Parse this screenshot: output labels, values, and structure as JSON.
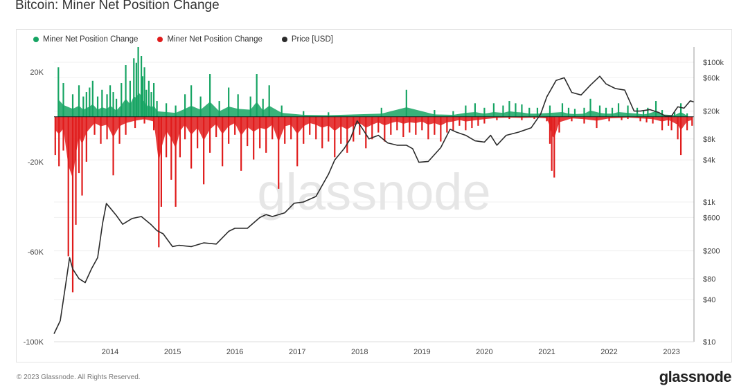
{
  "header": {
    "title": "Bitcoin: Miner Net Position Change"
  },
  "legend": [
    {
      "label": "Miner Net Position Change",
      "color": "#16a463"
    },
    {
      "label": "Miner Net Position Change",
      "color": "#e01b1b"
    },
    {
      "label": "Price [USD]",
      "color": "#2b2b2b"
    }
  ],
  "watermark": "glassnode",
  "footer": {
    "copyright": "© 2023 Glassnode. All Rights Reserved.",
    "brand": "glassnode"
  },
  "chart_data": {
    "type": "area",
    "x_ticks": [
      "2014",
      "2015",
      "2016",
      "2017",
      "2018",
      "2019",
      "2020",
      "2021",
      "2022",
      "2023"
    ],
    "x_range": [
      2013.1,
      2023.36
    ],
    "y_left_ticks": [
      {
        "value": 20000,
        "label": "20K"
      },
      {
        "value": -20000,
        "label": "-20K"
      },
      {
        "value": -60000,
        "label": "-60K"
      },
      {
        "value": -100000,
        "label": "-100K"
      }
    ],
    "y_left_range": [
      -100000,
      31000
    ],
    "y_right_ticks": [
      {
        "value": 100000,
        "label": "$100k"
      },
      {
        "value": 60000,
        "label": "$60k"
      },
      {
        "value": 20000,
        "label": "$20k"
      },
      {
        "value": 8000,
        "label": "$8k"
      },
      {
        "value": 4000,
        "label": "$4k"
      },
      {
        "value": 1000,
        "label": "$1k"
      },
      {
        "value": 600,
        "label": "$600"
      },
      {
        "value": 200,
        "label": "$200"
      },
      {
        "value": 80,
        "label": "$80"
      },
      {
        "value": 40,
        "label": "$40"
      },
      {
        "value": 10,
        "label": "$10"
      }
    ],
    "y_right_range": [
      10,
      165000
    ],
    "y_right_scale": "log",
    "grid": true,
    "legend_position": "top-left",
    "series": [
      {
        "name": "Miner Net Position Change",
        "color": "#16a463",
        "x": [
          2013.17,
          2013.25,
          2013.4,
          2013.5,
          2013.57,
          2013.62,
          2013.67,
          2013.72,
          2013.8,
          2013.87,
          2013.95,
          2014.0,
          2014.05,
          2014.1,
          2014.18,
          2014.25,
          2014.32,
          2014.38,
          2014.42,
          2014.45,
          2014.5,
          2014.52,
          2014.55,
          2014.58,
          2014.62,
          2014.66,
          2014.7,
          2014.75,
          2014.9,
          2015.05,
          2015.2,
          2015.3,
          2015.45,
          2015.6,
          2015.75,
          2015.9,
          2016.05,
          2016.25,
          2016.35,
          2016.45,
          2016.55,
          2016.75,
          2017.1,
          2017.5,
          2018.35,
          2018.75,
          2019.2,
          2019.5,
          2019.7,
          2019.85,
          2020.0,
          2020.15,
          2020.3,
          2020.4,
          2020.5,
          2020.6,
          2020.72,
          2020.85,
          2021.05,
          2021.25,
          2021.35,
          2021.45,
          2021.6,
          2021.7,
          2021.85,
          2021.95,
          2022.05,
          2022.15,
          2022.3,
          2022.45,
          2022.55,
          2022.62,
          2022.75,
          2022.85,
          2023.05,
          2023.15,
          2023.25
        ],
        "values": [
          22000,
          15000,
          10000,
          14000,
          9000,
          11000,
          13000,
          16000,
          9000,
          12000,
          10000,
          14000,
          11000,
          8000,
          15000,
          23000,
          16000,
          26000,
          24000,
          31000,
          27000,
          18000,
          22000,
          12000,
          16000,
          11000,
          15000,
          7000,
          6000,
          5000,
          10000,
          14000,
          9000,
          19000,
          7000,
          13000,
          10000,
          9000,
          19000,
          8000,
          14000,
          5000,
          2500,
          2000,
          4000,
          12000,
          3000,
          2500,
          5000,
          6000,
          4000,
          6000,
          5000,
          7000,
          6000,
          5500,
          4000,
          4000,
          5000,
          6000,
          4000,
          3500,
          4000,
          8000,
          5000,
          4000,
          4000,
          6000,
          5000,
          4000,
          3000,
          4000,
          7000,
          3000,
          2000,
          6000,
          1500
        ]
      },
      {
        "name": "Miner Net Position Change",
        "color": "#e01b1b",
        "x": [
          2013.12,
          2013.18,
          2013.25,
          2013.33,
          2013.4,
          2013.45,
          2013.5,
          2013.55,
          2013.62,
          2013.75,
          2013.85,
          2013.95,
          2014.05,
          2014.15,
          2014.25,
          2014.4,
          2014.55,
          2014.7,
          2014.78,
          2014.82,
          2014.9,
          2014.98,
          2015.05,
          2015.12,
          2015.2,
          2015.3,
          2015.4,
          2015.5,
          2015.6,
          2015.7,
          2015.8,
          2015.9,
          2016.0,
          2016.1,
          2016.2,
          2016.3,
          2016.4,
          2016.5,
          2016.6,
          2016.7,
          2016.8,
          2016.9,
          2017.0,
          2017.1,
          2017.2,
          2017.3,
          2017.4,
          2017.5,
          2017.6,
          2017.7,
          2017.8,
          2017.9,
          2018.0,
          2018.1,
          2018.2,
          2018.3,
          2018.4,
          2018.5,
          2018.6,
          2018.7,
          2018.8,
          2018.9,
          2019.0,
          2019.1,
          2019.2,
          2019.3,
          2019.4,
          2019.5,
          2019.6,
          2019.7,
          2019.8,
          2019.9,
          2020.0,
          2020.2,
          2020.4,
          2020.6,
          2020.8,
          2021.0,
          2021.05,
          2021.08,
          2021.12,
          2021.2,
          2021.4,
          2021.6,
          2021.8,
          2022.0,
          2022.2,
          2022.3,
          2022.5,
          2022.6,
          2022.7,
          2022.85,
          2022.95,
          2023.0,
          2023.1,
          2023.15,
          2023.25,
          2023.33
        ],
        "values": [
          -17000,
          -22000,
          -15000,
          -62000,
          -78000,
          -48000,
          -25000,
          -35000,
          -20000,
          -8000,
          -12000,
          -10000,
          -26000,
          -12000,
          -8000,
          -5000,
          -3000,
          -6000,
          -58000,
          -40000,
          -18000,
          -28000,
          -40000,
          -18000,
          -10000,
          -23000,
          -14000,
          -30000,
          -16000,
          -9000,
          -22000,
          -12000,
          -8000,
          -24000,
          -13000,
          -19000,
          -14000,
          -16000,
          -10000,
          -32000,
          -12000,
          -10000,
          -22000,
          -12000,
          -8000,
          -10000,
          -14000,
          -11000,
          -18000,
          -12000,
          -16000,
          -11000,
          -8000,
          -14000,
          -10000,
          -7000,
          -11000,
          -8000,
          -6000,
          -9000,
          -7000,
          -8000,
          -6000,
          -10000,
          -8000,
          -11000,
          -7000,
          -6000,
          -4000,
          -6000,
          -5000,
          -4000,
          -3000,
          -1500,
          -1000,
          -1500,
          -1000,
          -2000,
          -12000,
          -24000,
          -27000,
          -7000,
          -2000,
          -3000,
          -5000,
          -2000,
          -1500,
          -1000,
          -2000,
          -2500,
          -3000,
          -6000,
          -4000,
          -6000,
          -10000,
          -17000,
          -6000,
          -4000
        ]
      },
      {
        "name": "Price [USD]",
        "color": "#2b2b2b",
        "x": [
          2013.1,
          2013.2,
          2013.28,
          2013.35,
          2013.4,
          2013.5,
          2013.6,
          2013.7,
          2013.8,
          2013.88,
          2013.94,
          2014.0,
          2014.1,
          2014.2,
          2014.35,
          2014.5,
          2014.65,
          2014.75,
          2014.85,
          2015.0,
          2015.1,
          2015.3,
          2015.5,
          2015.7,
          2015.9,
          2016.0,
          2016.2,
          2016.4,
          2016.5,
          2016.6,
          2016.8,
          2016.95,
          2017.1,
          2017.3,
          2017.5,
          2017.6,
          2017.75,
          2017.85,
          2017.96,
          2018.05,
          2018.15,
          2018.3,
          2018.45,
          2018.6,
          2018.75,
          2018.85,
          2018.95,
          2019.1,
          2019.3,
          2019.45,
          2019.55,
          2019.7,
          2019.85,
          2020.0,
          2020.1,
          2020.2,
          2020.35,
          2020.55,
          2020.75,
          2020.9,
          2021.0,
          2021.15,
          2021.28,
          2021.4,
          2021.55,
          2021.7,
          2021.85,
          2021.95,
          2022.1,
          2022.25,
          2022.4,
          2022.5,
          2022.65,
          2022.8,
          2022.9,
          2023.0,
          2023.1,
          2023.2,
          2023.3,
          2023.36
        ],
        "values": [
          13,
          20,
          60,
          160,
          110,
          80,
          70,
          110,
          160,
          500,
          950,
          820,
          640,
          480,
          580,
          620,
          480,
          390,
          350,
          230,
          240,
          230,
          260,
          250,
          380,
          420,
          420,
          600,
          660,
          620,
          700,
          960,
          1000,
          1200,
          2500,
          4000,
          5800,
          8000,
          14500,
          11000,
          8000,
          9000,
          7000,
          6500,
          6500,
          5800,
          3700,
          3800,
          6000,
          11000,
          10000,
          9000,
          7500,
          7200,
          9000,
          6500,
          9000,
          10000,
          11500,
          18000,
          32000,
          55000,
          60000,
          37000,
          34000,
          47000,
          63000,
          49000,
          42000,
          40000,
          20000,
          20000,
          21000,
          19000,
          17000,
          17000,
          23000,
          22000,
          28000,
          27000
        ]
      }
    ]
  }
}
